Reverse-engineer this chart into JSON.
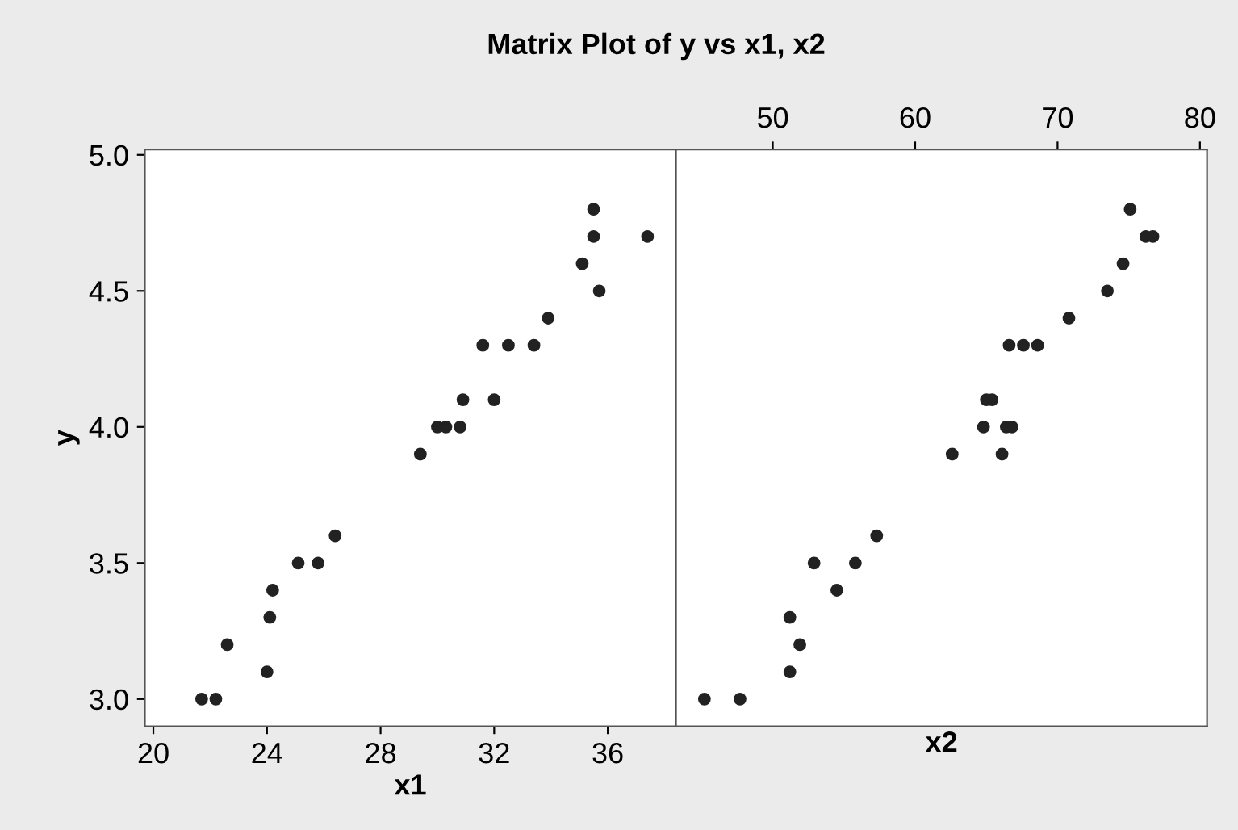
{
  "chart_data": [
    {
      "type": "scatter",
      "title": "Matrix Plot of y vs x1, x2",
      "xlabel": "x1",
      "ylabel": "y",
      "marker": "circle",
      "grid": false,
      "legend": false,
      "xlim": [
        19.7,
        38.4
      ],
      "xticks": [
        20,
        24,
        28,
        32,
        36
      ],
      "ylim": [
        2.9,
        5.02
      ],
      "yticks": [
        {
          "value": 3,
          "label": "3.0"
        },
        3.5,
        {
          "value": 4,
          "label": "4.0"
        },
        4.5,
        {
          "value": 5,
          "label": "5.0"
        }
      ],
      "series": [
        {
          "color": "#222222",
          "x": [
            21.7,
            22.2,
            22.6,
            24.0,
            24.1,
            24.2,
            25.1,
            25.8,
            26.4,
            29.4,
            30.0,
            30.3,
            30.8,
            30.9,
            32.0,
            31.6,
            32.5,
            33.4,
            33.9,
            35.1,
            35.5,
            35.5,
            35.7,
            37.4
          ],
          "values": [
            3.0,
            3.0,
            3.2,
            3.1,
            3.3,
            3.4,
            3.5,
            3.5,
            3.6,
            3.9,
            4.0,
            4.0,
            4.0,
            4.1,
            4.1,
            4.3,
            4.3,
            4.3,
            4.4,
            4.6,
            4.8,
            4.7,
            4.5,
            4.7
          ]
        }
      ]
    },
    {
      "type": "scatter",
      "xlabel": "x2",
      "marker": "circle",
      "grid": false,
      "legend": false,
      "tick_labels": "x",
      "xlim": [
        43.2,
        80.5
      ],
      "xticks": [
        50,
        60,
        70,
        80
      ],
      "ylim": [
        2.9,
        5.02
      ],
      "series": [
        {
          "color": "#222222",
          "x": [
            45.2,
            47.7,
            51.2,
            51.9,
            51.2,
            54.5,
            52.9,
            55.8,
            57.3,
            62.6,
            66.1,
            64.8,
            66.4,
            66.8,
            65.0,
            65.4,
            66.6,
            67.6,
            68.6,
            70.8,
            73.5,
            74.6,
            75.1,
            76.2,
            76.7
          ],
          "values": [
            3.0,
            3.0,
            3.1,
            3.2,
            3.3,
            3.4,
            3.5,
            3.5,
            3.6,
            3.9,
            3.9,
            4.0,
            4.0,
            4.0,
            4.1,
            4.1,
            4.3,
            4.3,
            4.3,
            4.4,
            4.5,
            4.6,
            4.8,
            4.7,
            4.7
          ]
        }
      ]
    }
  ]
}
